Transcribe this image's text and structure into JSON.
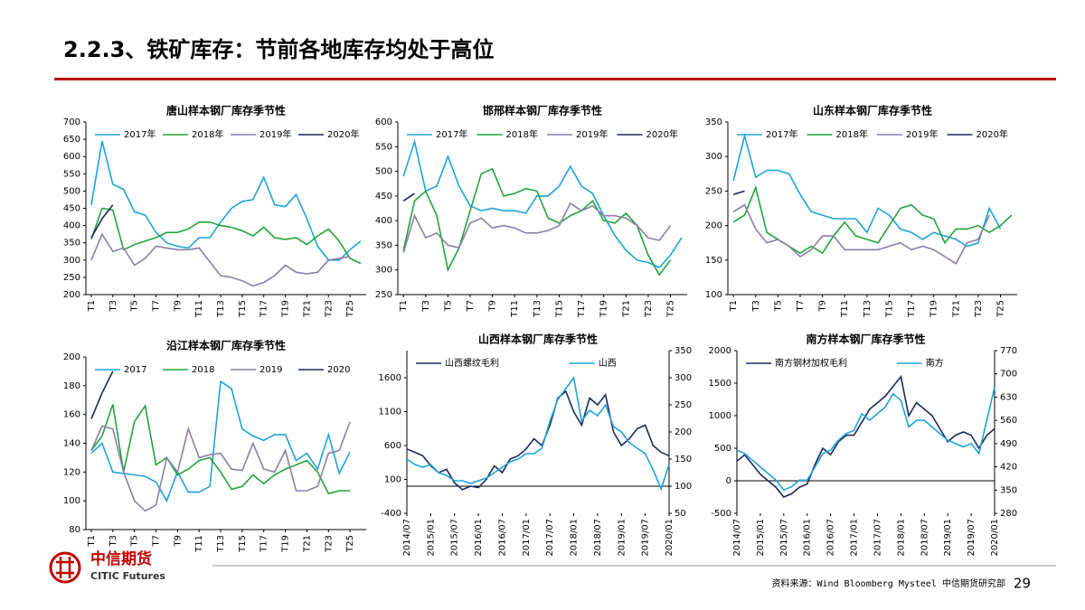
{
  "header": {
    "title": "2.2.3、铁矿库存：节前各地库存均处于高位"
  },
  "chart_data": [
    {
      "type": "line",
      "title": "唐山样本钢厂库存季节性",
      "categories": [
        "T1",
        null,
        "T3",
        null,
        "T5",
        null,
        "T7",
        null,
        "T9",
        null,
        "T11",
        null,
        "T13",
        null,
        "T15",
        null,
        "T17",
        null,
        "T19",
        null,
        "T21",
        null,
        "T23",
        null,
        "T25",
        null
      ],
      "series": [
        {
          "name": "2017年",
          "color": "#1fa3d8",
          "values": [
            460,
            645,
            520,
            505,
            440,
            430,
            380,
            350,
            340,
            335,
            365,
            365,
            410,
            450,
            470,
            475,
            540,
            460,
            455,
            490,
            420,
            340,
            300,
            300,
            330,
            355
          ]
        },
        {
          "name": "2018年",
          "color": "#21a33c",
          "values": [
            360,
            450,
            445,
            330,
            345,
            355,
            365,
            380,
            380,
            390,
            410,
            410,
            400,
            395,
            385,
            370,
            395,
            365,
            360,
            365,
            345,
            370,
            390,
            355,
            305,
            290
          ]
        },
        {
          "name": "2019年",
          "color": "#8c7fa3",
          "values": [
            300,
            375,
            325,
            335,
            285,
            305,
            340,
            335,
            330,
            330,
            335,
            295,
            255,
            250,
            240,
            225,
            235,
            255,
            285,
            265,
            260,
            265,
            300,
            305,
            310,
            null
          ]
        },
        {
          "name": "2020年",
          "color": "#1c2a5c",
          "values": [
            365,
            420,
            460,
            null,
            null,
            null,
            null,
            null,
            null,
            null,
            null,
            null,
            null,
            null,
            null,
            null,
            null,
            null,
            null,
            null,
            null,
            null,
            null,
            null,
            null,
            null
          ]
        }
      ],
      "ylim": [
        200,
        700
      ],
      "yticks": [
        200,
        250,
        300,
        350,
        400,
        450,
        500,
        550,
        600,
        650,
        700
      ]
    },
    {
      "type": "line",
      "title": "邯邢样本钢厂库存季节性",
      "categories": [
        "T1",
        null,
        "T3",
        null,
        "T5",
        null,
        "T7",
        null,
        "T9",
        null,
        "T11",
        null,
        "T13",
        null,
        "T15",
        null,
        "T17",
        null,
        "T19",
        null,
        "T21",
        null,
        "T23",
        null,
        "T25",
        null
      ],
      "series": [
        {
          "name": "2017年",
          "color": "#1fa3d8",
          "values": [
            490,
            560,
            460,
            470,
            530,
            470,
            430,
            420,
            425,
            420,
            420,
            415,
            450,
            450,
            470,
            510,
            470,
            455,
            410,
            370,
            340,
            320,
            315,
            305,
            330,
            365
          ]
        },
        {
          "name": "2018年",
          "color": "#21a33c",
          "values": [
            340,
            440,
            460,
            410,
            300,
            345,
            420,
            495,
            505,
            450,
            455,
            465,
            460,
            405,
            395,
            410,
            420,
            440,
            400,
            395,
            415,
            390,
            330,
            290,
            320,
            null
          ]
        },
        {
          "name": "2019年",
          "color": "#8c7fa3",
          "values": [
            335,
            410,
            365,
            375,
            350,
            345,
            395,
            405,
            385,
            390,
            385,
            375,
            375,
            380,
            390,
            435,
            420,
            430,
            410,
            410,
            405,
            390,
            365,
            360,
            390,
            null
          ]
        },
        {
          "name": "2020年",
          "color": "#1c2a5c",
          "values": [
            440,
            455,
            null,
            null,
            null,
            null,
            null,
            null,
            null,
            null,
            null,
            null,
            null,
            null,
            null,
            null,
            null,
            null,
            null,
            null,
            null,
            null,
            null,
            null,
            null,
            null
          ]
        }
      ],
      "ylim": [
        250,
        600
      ],
      "yticks": [
        250,
        300,
        350,
        400,
        450,
        500,
        550,
        600
      ]
    },
    {
      "type": "line",
      "title": "山东样本钢厂库存季节性",
      "categories": [
        "T1",
        null,
        "T3",
        null,
        "T5",
        null,
        "T7",
        null,
        "T9",
        null,
        "T11",
        null,
        "T13",
        null,
        "T15",
        null,
        "T17",
        null,
        "T19",
        null,
        "T21",
        null,
        "T23",
        null,
        "T25",
        null
      ],
      "series": [
        {
          "name": "2017年",
          "color": "#1fa3d8",
          "values": [
            265,
            330,
            270,
            280,
            280,
            275,
            245,
            220,
            215,
            210,
            210,
            210,
            190,
            225,
            215,
            195,
            190,
            180,
            190,
            185,
            180,
            170,
            175,
            225,
            195,
            null
          ]
        },
        {
          "name": "2018年",
          "color": "#21a33c",
          "values": [
            205,
            215,
            255,
            190,
            180,
            170,
            160,
            170,
            160,
            185,
            205,
            185,
            180,
            175,
            200,
            225,
            230,
            215,
            210,
            175,
            195,
            195,
            200,
            190,
            200,
            215
          ]
        },
        {
          "name": "2019年",
          "color": "#8c7fa3",
          "values": [
            220,
            230,
            195,
            175,
            180,
            170,
            155,
            165,
            185,
            185,
            165,
            165,
            165,
            165,
            170,
            175,
            165,
            170,
            165,
            155,
            145,
            175,
            180,
            215,
            null,
            null
          ]
        },
        {
          "name": "2020年",
          "color": "#1c2a5c",
          "values": [
            245,
            250,
            null,
            null,
            null,
            null,
            null,
            null,
            null,
            null,
            null,
            null,
            null,
            null,
            null,
            null,
            null,
            null,
            null,
            null,
            null,
            null,
            null,
            null,
            null,
            null
          ]
        }
      ],
      "ylim": [
        100,
        350
      ],
      "yticks": [
        100,
        150,
        200,
        250,
        300,
        350
      ]
    },
    {
      "type": "line",
      "title": "沿江样本钢厂库存季节性",
      "categories": [
        "T1",
        null,
        "T3",
        null,
        "T5",
        null,
        "T7",
        null,
        "T9",
        null,
        "T11",
        null,
        "T13",
        null,
        "T15",
        null,
        "T17",
        null,
        "T19",
        null,
        "T21",
        null,
        "T23",
        null,
        "T25",
        null
      ],
      "series": [
        {
          "name": "2017",
          "color": "#1fa3d8",
          "values": [
            133,
            140,
            120,
            119,
            118,
            117,
            113,
            100,
            120,
            106,
            106,
            110,
            183,
            178,
            150,
            145,
            142,
            146,
            146,
            128,
            133,
            122,
            146,
            119,
            134,
            null
          ]
        },
        {
          "name": "2018",
          "color": "#21a33c",
          "values": [
            135,
            145,
            167,
            120,
            155,
            166,
            125,
            130,
            118,
            122,
            128,
            130,
            120,
            108,
            110,
            118,
            112,
            118,
            122,
            125,
            128,
            120,
            105,
            107,
            107,
            null
          ]
        },
        {
          "name": "2019",
          "color": "#8c7fa3",
          "values": [
            135,
            152,
            150,
            120,
            100,
            93,
            97,
            130,
            120,
            150,
            130,
            132,
            133,
            122,
            121,
            140,
            122,
            120,
            135,
            107,
            107,
            110,
            133,
            135,
            155,
            null
          ]
        },
        {
          "name": "2020",
          "color": "#1c2a5c",
          "values": [
            157,
            175,
            190,
            null,
            null,
            null,
            null,
            null,
            null,
            null,
            null,
            null,
            null,
            null,
            null,
            null,
            null,
            null,
            null,
            null,
            null,
            null,
            null,
            null,
            null,
            null
          ]
        }
      ],
      "ylim": [
        80,
        200
      ],
      "yticks": [
        80,
        100,
        120,
        140,
        160,
        180,
        200
      ]
    },
    {
      "type": "line",
      "title": "山西样本钢厂库存季节性",
      "categories": [
        "2014/07",
        null,
        null,
        "2015/01",
        null,
        null,
        "2015/07",
        null,
        null,
        "2016/01",
        null,
        null,
        "2016/07",
        null,
        null,
        "2017/01",
        null,
        null,
        "2017/07",
        null,
        null,
        "2018/01",
        null,
        null,
        "2018/07",
        null,
        null,
        "2019/01",
        null,
        null,
        "2019/07",
        null,
        null,
        "2020/01"
      ],
      "series": [
        {
          "name": "山西螺纹毛利",
          "color": "#1c2a5c",
          "values": [
            550,
            500,
            450,
            300,
            200,
            250,
            50,
            -50,
            0,
            -20,
            100,
            300,
            200,
            400,
            450,
            550,
            700,
            600,
            900,
            1300,
            1400,
            1100,
            900,
            1300,
            1200,
            1350,
            800,
            600,
            700,
            850,
            900,
            600,
            500,
            450
          ]
        },
        {
          "name": "山西",
          "color": "#1fa3d8",
          "axis": "y2",
          "values": [
            150,
            140,
            135,
            140,
            125,
            120,
            110,
            110,
            105,
            110,
            115,
            125,
            135,
            145,
            150,
            160,
            160,
            170,
            220,
            260,
            280,
            300,
            220,
            240,
            230,
            250,
            210,
            200,
            180,
            170,
            160,
            130,
            95,
            140
          ]
        }
      ],
      "ylim": [
        -400,
        2000
      ],
      "yticks": [
        -400,
        100,
        600,
        1100,
        1600
      ],
      "y2lim": [
        50,
        350
      ],
      "y2ticks": [
        50,
        100,
        150,
        200,
        250,
        300,
        350
      ]
    },
    {
      "type": "line",
      "title": "南方样本钢厂库存季节性",
      "categories": [
        "2014/07",
        null,
        null,
        "2015/01",
        null,
        null,
        "2015/07",
        null,
        null,
        "2016/01",
        null,
        null,
        "2016/07",
        null,
        null,
        "2017/01",
        null,
        null,
        "2017/07",
        null,
        null,
        "2018/01",
        null,
        null,
        "2018/07",
        null,
        null,
        "2019/01",
        null,
        null,
        "2019/07",
        null,
        null,
        "2020/01"
      ],
      "series": [
        {
          "name": "南方钢材加权毛利",
          "color": "#1c2a5c",
          "values": [
            300,
            400,
            250,
            100,
            0,
            -100,
            -250,
            -200,
            -100,
            -50,
            250,
            500,
            400,
            600,
            700,
            700,
            900,
            1100,
            1200,
            1300,
            1450,
            1600,
            1000,
            1200,
            1100,
            1000,
            800,
            600,
            700,
            750,
            700,
            500,
            700,
            800
          ]
        },
        {
          "name": "南方",
          "color": "#1fa3d8",
          "axis": "y2",
          "values": [
            470,
            460,
            440,
            420,
            400,
            380,
            350,
            360,
            380,
            380,
            420,
            460,
            470,
            500,
            520,
            530,
            580,
            560,
            580,
            600,
            640,
            620,
            540,
            560,
            560,
            540,
            520,
            500,
            490,
            480,
            490,
            460,
            560,
            660
          ]
        }
      ],
      "ylim": [
        -500,
        2000
      ],
      "yticks": [
        -500,
        0,
        500,
        1000,
        1500,
        2000
      ],
      "y2lim": [
        280,
        770
      ],
      "y2ticks": [
        280,
        350,
        420,
        490,
        560,
        630,
        700,
        770
      ]
    }
  ],
  "footer": {
    "logo_cn": "中信期货",
    "logo_en": "CITIC Futures",
    "source": "资料来源：Wind Bloomberg Mysteel 中信期货研究部",
    "page": "29"
  }
}
